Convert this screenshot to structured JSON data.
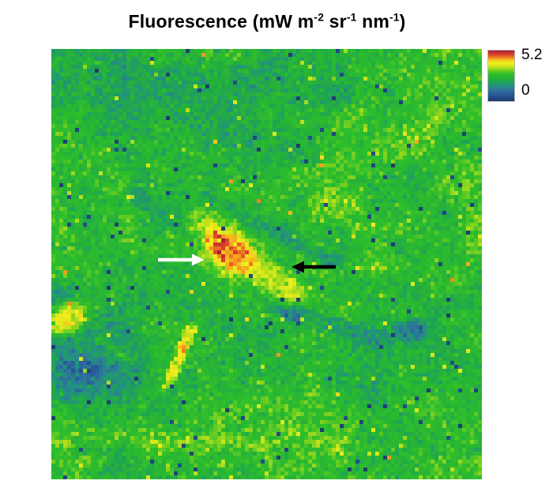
{
  "title": {
    "pre": "Fluorescence (mW m",
    "sup1": "-2",
    "mid1": " sr",
    "sup2": "-1",
    "mid2": " nm",
    "sup3": "-1",
    "post": ")"
  },
  "chart_data": {
    "type": "heatmap",
    "title": "Fluorescence (mW m-2 sr-1 nm-1)",
    "units": "mW m-2 sr-1 nm-1",
    "grid": {
      "cols": 109,
      "rows": 109
    },
    "value_domain": {
      "vmin": -1.65,
      "vmax": 6.06
    },
    "colorbar": {
      "ticks": [
        {
          "value": 5.2,
          "label": "5.2"
        },
        {
          "value": 0,
          "label": "0"
        }
      ],
      "stops": [
        [
          0.0,
          "#1c3969"
        ],
        [
          0.09,
          "#24508e"
        ],
        [
          0.16,
          "#2a629b"
        ],
        [
          0.22,
          "#2f7598"
        ],
        [
          0.3,
          "#229180"
        ],
        [
          0.38,
          "#1fa455"
        ],
        [
          0.46,
          "#28b434"
        ],
        [
          0.54,
          "#2ebf2b"
        ],
        [
          0.62,
          "#84d31f"
        ],
        [
          0.7,
          "#d8e81c"
        ],
        [
          0.76,
          "#f3ee1e"
        ],
        [
          0.81,
          "#f7c31d"
        ],
        [
          0.86,
          "#f0841f"
        ],
        [
          0.91,
          "#de4c2a"
        ],
        [
          0.96,
          "#c22f31"
        ],
        [
          1.0,
          "#a81f33"
        ]
      ]
    },
    "field": {
      "seed": 11,
      "base_value": 2.2,
      "noise": {
        "grid1": {
          "n": 12,
          "amp": 0.5
        },
        "grid2": {
          "n": 28,
          "amp": 0.3
        },
        "white_sigma": 0.4
      },
      "outliers": {
        "navy_p": 0.013,
        "navy_v": -1.3,
        "yellow_p": 0.01,
        "yellow_v": 3.5,
        "red_p": 0.0022,
        "red_v": 4.6
      },
      "regions": [
        {
          "t": "g",
          "x": 0.1,
          "y": 0.05,
          "rx": 0.26,
          "ry": 0.12,
          "a": 0,
          "v": 1.25,
          "s": 0.8
        },
        {
          "t": "g",
          "x": 0.32,
          "y": 0.15,
          "rx": 0.3,
          "ry": 0.15,
          "a": 15,
          "v": 1.55,
          "s": 0.6
        },
        {
          "t": "g",
          "x": 0.54,
          "y": 0.07,
          "rx": 0.15,
          "ry": 0.1,
          "a": 0,
          "v": 1.35,
          "s": 0.7
        },
        {
          "t": "g",
          "x": 0.225,
          "y": 0.575,
          "rx": 0.17,
          "ry": 0.105,
          "a": -8,
          "v": 1.5,
          "s": 0.6
        },
        {
          "t": "g",
          "x": 0.02,
          "y": 0.575,
          "rx": 0.07,
          "ry": 0.045,
          "a": 0,
          "v": 1.0,
          "s": 0.6
        },
        {
          "t": "g",
          "x": 0.1,
          "y": 0.73,
          "rx": 0.14,
          "ry": 0.11,
          "a": -20,
          "v": 0.4,
          "s": 0.75
        },
        {
          "t": "g",
          "x": 0.065,
          "y": 0.76,
          "rx": 0.06,
          "ry": 0.045,
          "a": -20,
          "v": -0.5,
          "s": 0.6
        },
        {
          "t": "g",
          "x": 0.36,
          "y": 0.7,
          "rx": 0.2,
          "ry": 0.11,
          "a": -5,
          "v": 1.7,
          "s": 0.5
        },
        {
          "t": "g",
          "x": 0.78,
          "y": 0.63,
          "rx": 0.25,
          "ry": 0.14,
          "a": 5,
          "v": 1.5,
          "s": 0.6
        },
        {
          "t": "g",
          "x": 0.835,
          "y": 0.655,
          "rx": 0.04,
          "ry": 0.025,
          "a": 0,
          "v": -0.7,
          "s": 0.8
        },
        {
          "t": "g",
          "x": 0.93,
          "y": 0.08,
          "rx": 0.05,
          "ry": 0.04,
          "a": 0,
          "v": 3.0,
          "s": 0.4
        },
        {
          "t": "g",
          "x": 0.7,
          "y": 0.17,
          "rx": 0.055,
          "ry": 0.035,
          "a": 10,
          "v": 3.4,
          "s": 0.6
        },
        {
          "t": "g",
          "x": 0.81,
          "y": 0.215,
          "rx": 0.07,
          "ry": 0.04,
          "a": 0,
          "v": 3.4,
          "s": 0.55
        },
        {
          "t": "g",
          "x": 0.9,
          "y": 0.16,
          "rx": 0.05,
          "ry": 0.05,
          "a": 0,
          "v": 3.2,
          "s": 0.5
        },
        {
          "t": "g",
          "x": 0.97,
          "y": 0.3,
          "rx": 0.05,
          "ry": 0.04,
          "a": 0,
          "v": 3.4,
          "s": 0.55
        },
        {
          "t": "g",
          "x": 0.72,
          "y": 0.27,
          "rx": 0.05,
          "ry": 0.03,
          "a": 0,
          "v": 3.1,
          "s": 0.4
        },
        {
          "t": "g",
          "x": 0.67,
          "y": 0.35,
          "rx": 0.065,
          "ry": 0.04,
          "a": 0,
          "v": 3.5,
          "s": 0.6
        },
        {
          "t": "g",
          "x": 0.6,
          "y": 0.295,
          "rx": 0.05,
          "ry": 0.03,
          "a": 0,
          "v": 3.3,
          "s": 0.5
        },
        {
          "t": "g",
          "x": 0.755,
          "y": 0.405,
          "rx": 0.075,
          "ry": 0.03,
          "a": 5,
          "v": 3.3,
          "s": 0.45
        },
        {
          "t": "g",
          "x": 0.26,
          "y": 0.015,
          "rx": 0.05,
          "ry": 0.025,
          "a": 0,
          "v": 3.0,
          "s": 0.5
        },
        {
          "t": "g",
          "x": 0.45,
          "y": 0.01,
          "rx": 0.04,
          "ry": 0.02,
          "a": 0,
          "v": 3.0,
          "s": 0.45
        },
        {
          "t": "g",
          "x": 0.995,
          "y": 0.43,
          "rx": 0.035,
          "ry": 0.05,
          "a": 0,
          "v": 3.4,
          "s": 0.5
        },
        {
          "t": "g",
          "x": 0.63,
          "y": 0.51,
          "rx": 0.05,
          "ry": 0.03,
          "a": 0,
          "v": 3.3,
          "s": 0.45
        },
        {
          "t": "g",
          "x": 0.76,
          "y": 0.505,
          "rx": 0.06,
          "ry": 0.028,
          "a": 0,
          "v": 3.2,
          "s": 0.4
        },
        {
          "t": "g",
          "x": 0.92,
          "y": 0.53,
          "rx": 0.06,
          "ry": 0.03,
          "a": 0,
          "v": 3.3,
          "s": 0.45
        },
        {
          "t": "b",
          "x1": 0.355,
          "y1": 0.345,
          "x2": 0.665,
          "y2": 0.5,
          "w": 0.016,
          "v": 0.9,
          "s": 0.7
        },
        {
          "t": "b",
          "x1": 0.19,
          "y1": 0.335,
          "x2": 0.345,
          "y2": 0.44,
          "w": 0.018,
          "v": 0.8,
          "s": 0.6
        },
        {
          "t": "b",
          "x1": 0.345,
          "y1": 0.44,
          "x2": 0.56,
          "y2": 0.61,
          "w": 0.022,
          "v": -0.9,
          "s": 0.85
        },
        {
          "t": "b",
          "x1": 0.56,
          "y1": 0.61,
          "x2": 0.78,
          "y2": 0.68,
          "w": 0.018,
          "v": 0.3,
          "s": 0.6
        },
        {
          "t": "g",
          "x": 0.405,
          "y": 0.462,
          "rx": 0.105,
          "ry": 0.068,
          "a": 38,
          "v": 3.4,
          "s": 0.5,
          "k": 7
        },
        {
          "t": "g",
          "x": 0.41,
          "y": 0.468,
          "rx": 0.088,
          "ry": 0.052,
          "a": 38,
          "v": 4.3,
          "s": 0.75,
          "k": 8
        },
        {
          "t": "g",
          "x": 0.418,
          "y": 0.472,
          "rx": 0.068,
          "ry": 0.036,
          "a": 38,
          "v": 5.35,
          "s": 0.92,
          "k": 9
        },
        {
          "t": "g",
          "x": 0.515,
          "y": 0.545,
          "rx": 0.078,
          "ry": 0.042,
          "a": 35,
          "v": 3.7,
          "s": 0.85,
          "k": 8
        },
        {
          "t": "g",
          "x": 0.035,
          "y": 0.625,
          "rx": 0.05,
          "ry": 0.035,
          "a": -30,
          "v": 3.9,
          "s": 0.85,
          "k": 8
        },
        {
          "t": "g",
          "x": 0.025,
          "y": 0.635,
          "rx": 0.022,
          "ry": 0.016,
          "a": -30,
          "v": 4.5,
          "s": 0.7
        },
        {
          "t": "b",
          "x1": 0.325,
          "y1": 0.65,
          "x2": 0.272,
          "y2": 0.78,
          "w": 0.013,
          "v": 3.9,
          "s": 0.8,
          "k": 8
        },
        {
          "t": "g",
          "x": 0.305,
          "y": 0.695,
          "rx": 0.013,
          "ry": 0.013,
          "a": 0,
          "v": 4.9,
          "s": 0.55
        },
        {
          "t": "g",
          "x": 0.284,
          "y": 0.755,
          "rx": 0.011,
          "ry": 0.011,
          "a": 0,
          "v": 4.6,
          "s": 0.45
        },
        {
          "t": "b",
          "x1": 0.115,
          "y1": 0.675,
          "x2": 0.178,
          "y2": 0.722,
          "w": 0.01,
          "v": 2.9,
          "s": 0.45
        },
        {
          "t": "b",
          "x1": 0.0,
          "y1": 0.905,
          "x2": 0.48,
          "y2": 0.915,
          "w": 0.02,
          "v": 3.3,
          "s": 0.5
        },
        {
          "t": "g",
          "x": 0.07,
          "y": 0.955,
          "rx": 0.05,
          "ry": 0.02,
          "a": 0,
          "v": 3.3,
          "s": 0.4
        },
        {
          "t": "g",
          "x": 0.56,
          "y": 0.88,
          "rx": 0.05,
          "ry": 0.035,
          "a": 0,
          "v": 3.1,
          "s": 0.4
        },
        {
          "t": "g",
          "x": 0.7,
          "y": 0.935,
          "rx": 0.05,
          "ry": 0.03,
          "a": 0,
          "v": 3.1,
          "s": 0.4
        },
        {
          "t": "g",
          "x": 0.52,
          "y": 0.975,
          "rx": 0.04,
          "ry": 0.02,
          "a": 0,
          "v": 3.2,
          "s": 0.4
        },
        {
          "t": "g",
          "x": 0.9,
          "y": 0.985,
          "rx": 0.05,
          "ry": 0.02,
          "a": 0,
          "v": 3.2,
          "s": 0.4
        }
      ]
    },
    "annotations": {
      "arrows": [
        {
          "name": "white-arrow",
          "color": "#ffffff",
          "tail": [
            135,
            267
          ],
          "tip": [
            194,
            267
          ],
          "shaft": 4.5,
          "head_len": 16,
          "head_w": 15
        },
        {
          "name": "black-arrow",
          "color": "#000000",
          "tail": [
            360,
            276
          ],
          "tip": [
            304,
            276
          ],
          "shaft": 4.5,
          "head_len": 16,
          "head_w": 15
        }
      ]
    }
  }
}
